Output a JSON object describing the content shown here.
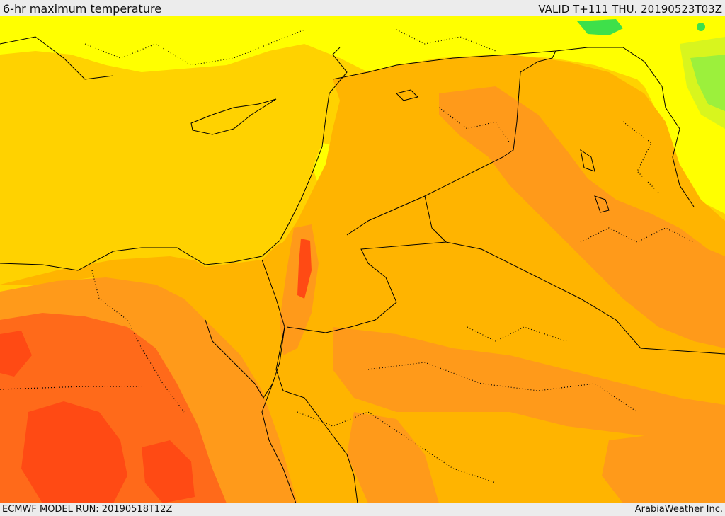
{
  "header": {
    "title": "6-hr maximum temperature",
    "valid_time": "VALID T+111 THU. 20190523T03Z"
  },
  "footer": {
    "model_run": "ECMWF MODEL RUN: 20190518T12Z",
    "credit": "ArabiaWeather Inc."
  },
  "map": {
    "colors": {
      "green": "#3ee04a",
      "light_green": "#9cf03c",
      "yellow_green": "#d8f51e",
      "yellow": "#ffff00",
      "gold": "#ffd200",
      "light_orange": "#ffb400",
      "orange": "#ff9a1a",
      "deep_orange": "#ff6a1a",
      "red_orange": "#ff4a14",
      "border": "#000000"
    }
  }
}
